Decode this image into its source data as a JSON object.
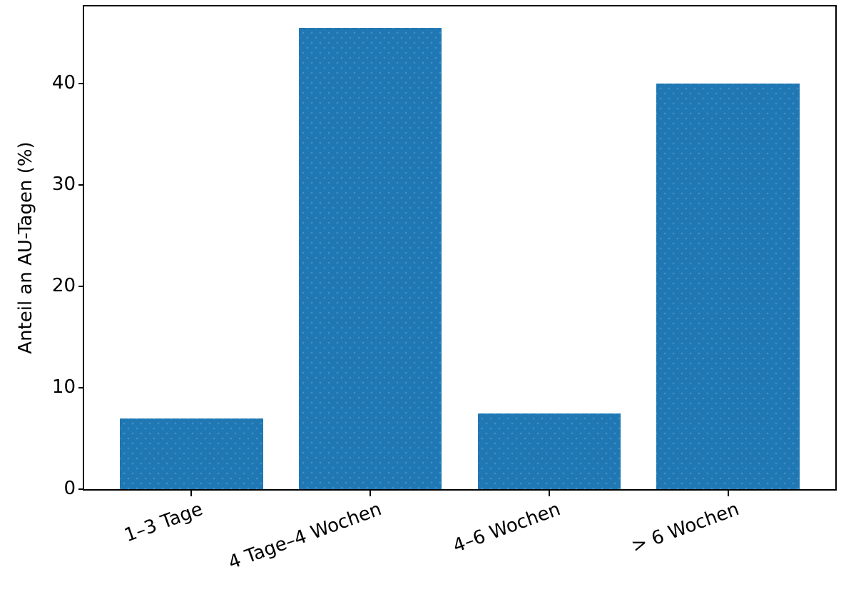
{
  "figure": {
    "background": "#ffffff"
  },
  "chart_data": {
    "type": "bar",
    "title": "",
    "xlabel": "",
    "ylabel": "Anteil an AU-Tagen (%)",
    "categories": [
      "1–3 Tage",
      "4 Tage–4 Wochen",
      "4–6 Wochen",
      "> 6 Wochen"
    ],
    "values": [
      7.0,
      45.5,
      7.5,
      40.0
    ],
    "yticks": [
      0,
      10,
      20,
      30,
      40
    ],
    "ylim": [
      0,
      47.6
    ],
    "xlim": [
      -0.6,
      3.6
    ],
    "bar_width": 0.8,
    "bar_color": "#1f77b4",
    "axis_color": "#000000",
    "x_tick_rotation_deg": 20,
    "grid": false,
    "legend_position": "none"
  }
}
